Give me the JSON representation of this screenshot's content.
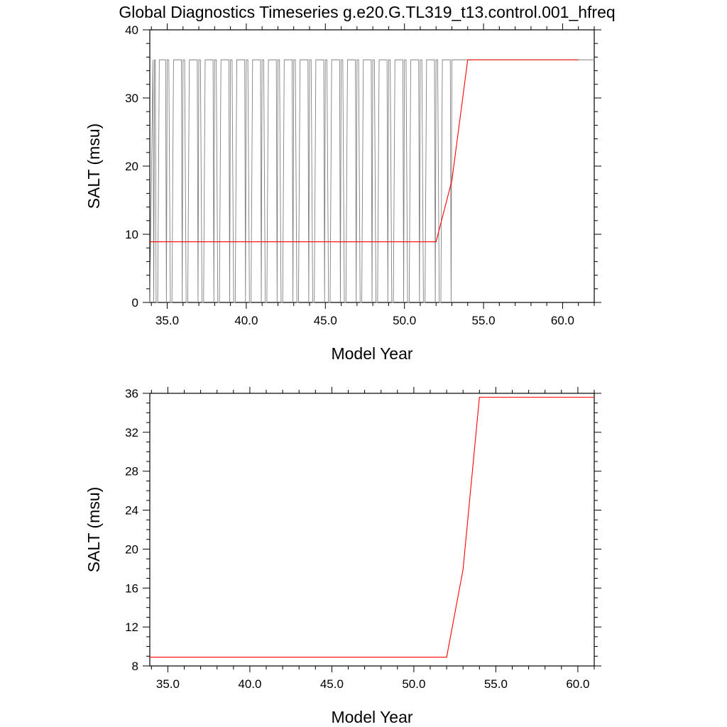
{
  "title": "Global Diagnostics Timeseries g.e20.G.TL319_t13.control.001_hfreq",
  "colors": {
    "raw": "#808080",
    "smooth": "#ff0000",
    "axis": "#000000"
  },
  "chart_data": [
    {
      "type": "line",
      "xlabel": "Model Year",
      "ylabel": "SALT (msu)",
      "xlim": [
        33.9,
        62.0
      ],
      "ylim": [
        0,
        40
      ],
      "xticks": [
        "35.0",
        "40.0",
        "45.0",
        "50.0",
        "55.0",
        "60.0"
      ],
      "yticks": [
        "0",
        "10",
        "20",
        "30",
        "40"
      ],
      "series": [
        {
          "color": "gray",
          "x": [
            33.9,
            34.1,
            34.15,
            34.2,
            34.25,
            34.3,
            34.4,
            34.5,
            34.9,
            34.95,
            35.0,
            35.1,
            35.2,
            35.3,
            35.4,
            35.5,
            35.9,
            35.95,
            36.0,
            36.1,
            36.2,
            36.3,
            36.4,
            36.5,
            36.9,
            36.95,
            37.0,
            37.1,
            37.2,
            37.3,
            37.4,
            37.5,
            37.9,
            37.95,
            38.0,
            38.1,
            38.2,
            38.3,
            38.4,
            38.5,
            38.9,
            38.95,
            39.0,
            39.1,
            39.2,
            39.3,
            39.4,
            39.5,
            39.9,
            39.95,
            40.0,
            40.1,
            40.2,
            40.3,
            40.4,
            40.5,
            40.9,
            40.95,
            41.0,
            41.1,
            41.2,
            41.3,
            41.4,
            41.5,
            41.9,
            41.95,
            42.0,
            42.1,
            42.2,
            42.3,
            42.4,
            42.5,
            42.9,
            42.95,
            43.0,
            43.1,
            43.2,
            43.3,
            43.4,
            43.5,
            43.9,
            43.95,
            44.0,
            44.1,
            44.2,
            44.3,
            44.4,
            44.5,
            44.9,
            44.95,
            45.0,
            45.1,
            45.2,
            45.3,
            45.4,
            45.5,
            45.9,
            45.95,
            46.0,
            46.1,
            46.2,
            46.3,
            46.4,
            46.5,
            46.9,
            46.95,
            47.0,
            47.1,
            47.2,
            47.3,
            47.4,
            47.5,
            47.9,
            47.95,
            48.0,
            48.1,
            48.2,
            48.3,
            48.4,
            48.5,
            48.9,
            48.95,
            49.0,
            49.1,
            49.2,
            49.3,
            49.4,
            49.5,
            49.9,
            49.95,
            50.0,
            50.1,
            50.2,
            50.3,
            50.4,
            50.5,
            50.9,
            50.95,
            51.0,
            51.1,
            51.2,
            51.3,
            51.4,
            51.5,
            51.9,
            51.95,
            52.0,
            52.1,
            52.2,
            52.3,
            52.4,
            52.5,
            52.9,
            52.95,
            53.0,
            62.0
          ],
          "y": [
            0,
            35.6,
            0,
            35.6,
            35.6,
            0,
            0,
            35.6,
            35.6,
            0,
            35.6,
            35.6,
            0,
            0,
            35.6,
            35.6,
            35.6,
            0,
            35.6,
            35.6,
            0,
            0,
            35.6,
            35.6,
            35.6,
            0,
            35.6,
            35.6,
            0,
            0,
            35.6,
            35.6,
            35.6,
            0,
            35.6,
            35.6,
            0,
            0,
            35.6,
            35.6,
            35.6,
            0,
            35.6,
            35.6,
            0,
            0,
            35.6,
            35.6,
            35.6,
            0,
            35.6,
            35.6,
            0,
            0,
            35.6,
            35.6,
            35.6,
            0,
            35.6,
            35.6,
            0,
            0,
            35.6,
            35.6,
            35.6,
            0,
            35.6,
            35.6,
            0,
            0,
            35.6,
            35.6,
            35.6,
            0,
            35.6,
            35.6,
            0,
            0,
            35.6,
            35.6,
            35.6,
            0,
            35.6,
            35.6,
            0,
            0,
            35.6,
            35.6,
            35.6,
            0,
            35.6,
            35.6,
            0,
            0,
            35.6,
            35.6,
            35.6,
            0,
            35.6,
            35.6,
            0,
            0,
            35.6,
            35.6,
            35.6,
            0,
            35.6,
            35.6,
            0,
            0,
            35.6,
            35.6,
            35.6,
            0,
            35.6,
            35.6,
            0,
            0,
            35.6,
            35.6,
            35.6,
            0,
            35.6,
            35.6,
            0,
            0,
            35.6,
            35.6,
            35.6,
            0,
            35.6,
            35.6,
            0,
            0,
            35.6,
            35.6,
            35.6,
            0,
            35.6,
            35.6,
            0,
            0,
            35.6,
            35.6,
            35.6,
            0,
            35.6,
            35.6,
            0,
            0,
            35.6,
            35.6,
            35.6,
            0,
            35.6,
            35.6
          ]
        },
        {
          "color": "red",
          "x": [
            33.9,
            52.0,
            53.0,
            54.0,
            61.0
          ],
          "y": [
            8.9,
            8.9,
            17.9,
            35.6,
            35.6
          ]
        }
      ]
    },
    {
      "type": "line",
      "xlabel": "Model Year",
      "ylabel": "SALT (msu)",
      "xlim": [
        33.9,
        61.0
      ],
      "ylim": [
        8,
        36
      ],
      "xticks": [
        "35.0",
        "40.0",
        "45.0",
        "50.0",
        "55.0",
        "60.0"
      ],
      "yticks": [
        "8",
        "12",
        "16",
        "20",
        "24",
        "28",
        "32",
        "36"
      ],
      "series": [
        {
          "color": "red",
          "x": [
            33.9,
            52.0,
            53.0,
            54.0,
            61.0
          ],
          "y": [
            8.9,
            8.9,
            17.9,
            35.6,
            35.6
          ]
        }
      ]
    }
  ]
}
